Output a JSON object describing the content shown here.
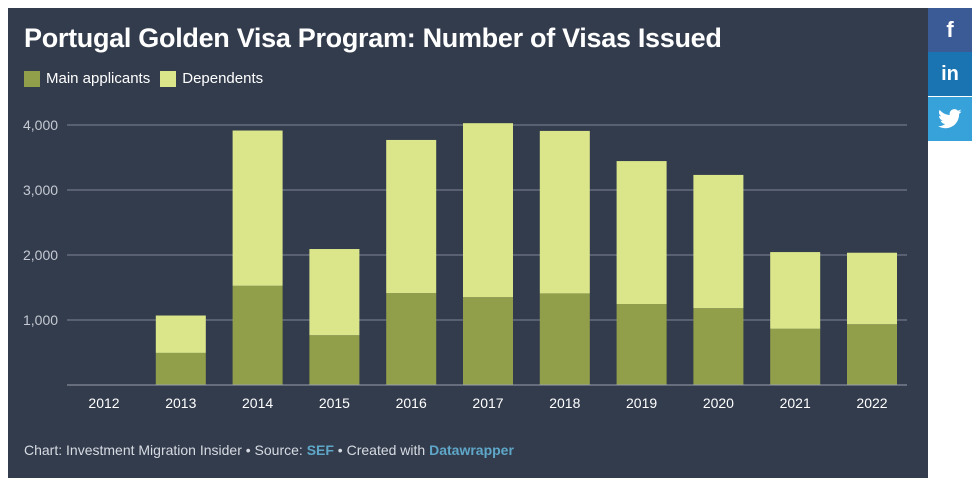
{
  "colors": {
    "background": "#333c4d",
    "main": "#919e4a",
    "dependents": "#dbe68a",
    "grid": "#7d8596",
    "text": "#ffffff",
    "link": "#5fa7c8"
  },
  "legend": {
    "main_label": "Main applicants",
    "dependents_label": "Dependents"
  },
  "footer": {
    "prefix": "Chart: Investment Migration Insider • Source: ",
    "source": "SEF",
    "middle": " • Created with ",
    "tool": "Datawrapper"
  },
  "share": {
    "facebook_icon": "facebook-icon",
    "linkedin_icon": "linkedin-icon",
    "twitter_icon": "twitter-icon",
    "facebook_glyph": "f",
    "linkedin_glyph": "in"
  },
  "chart_data": {
    "type": "bar",
    "stacked": true,
    "title": "Portugal Golden Visa Program: Number of Visas Issued",
    "categories": [
      "2012",
      "2013",
      "2014",
      "2015",
      "2016",
      "2017",
      "2018",
      "2019",
      "2020",
      "2021",
      "2022"
    ],
    "series": [
      {
        "name": "Main applicants",
        "values": [
          2,
          494,
          1526,
          766,
          1414,
          1351,
          1409,
          1245,
          1182,
          865,
          935
        ]
      },
      {
        "name": "Dependents",
        "values": [
          0,
          575,
          2389,
          1326,
          2356,
          2677,
          2500,
          2200,
          2050,
          1180,
          1100
        ]
      }
    ],
    "y_ticks": [
      1000,
      2000,
      3000,
      4000
    ],
    "y_tick_labels": [
      "1,000",
      "2,000",
      "3,000",
      "4,000"
    ],
    "ylim": [
      0,
      4000
    ],
    "grid": true,
    "legend_position": "top-left"
  }
}
